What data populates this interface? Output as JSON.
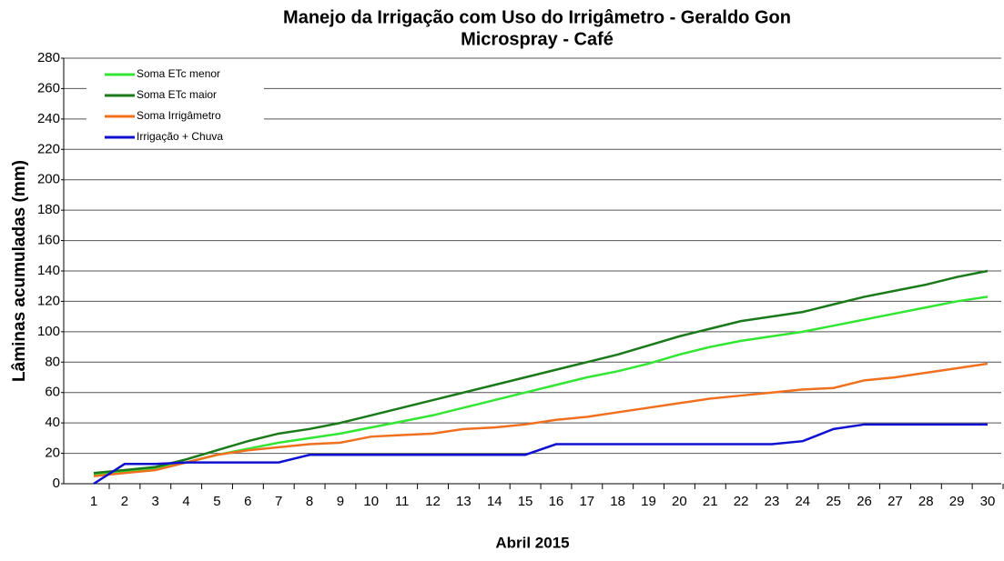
{
  "chart_data": {
    "type": "line",
    "title": "Manejo da Irrigação com Uso do Irrigâmetro - Geraldo Gon",
    "subtitle": "Microspray - Café",
    "x_label": "Abril 2015",
    "y_label": "Lâminas acumuladas (mm)",
    "x": [
      1,
      2,
      3,
      4,
      5,
      6,
      7,
      8,
      9,
      10,
      11,
      12,
      13,
      14,
      15,
      16,
      17,
      18,
      19,
      20,
      21,
      22,
      23,
      24,
      25,
      26,
      27,
      28,
      29,
      30
    ],
    "xticks": [
      1,
      2,
      3,
      4,
      5,
      6,
      7,
      8,
      9,
      10,
      11,
      12,
      13,
      14,
      15,
      16,
      17,
      18,
      19,
      20,
      21,
      22,
      23,
      24,
      25,
      26,
      27,
      28,
      29,
      30
    ],
    "ylim": [
      0,
      280
    ],
    "yticks": [
      0,
      20,
      40,
      60,
      80,
      100,
      120,
      140,
      160,
      180,
      200,
      220,
      240,
      260,
      280
    ],
    "grid": true,
    "legend": "upper left",
    "series": [
      {
        "name": "Soma ETc menor",
        "color": "#33e633",
        "values": [
          6,
          8,
          10,
          14,
          19,
          23,
          27,
          30,
          33,
          37,
          41,
          45,
          50,
          55,
          60,
          65,
          70,
          74,
          79,
          85,
          90,
          94,
          97,
          100,
          104,
          108,
          112,
          116,
          120,
          123
        ]
      },
      {
        "name": "Soma ETc maior",
        "color": "#1a7a1a",
        "values": [
          7,
          9,
          11,
          16,
          22,
          28,
          33,
          36,
          40,
          45,
          50,
          55,
          60,
          65,
          70,
          75,
          80,
          85,
          91,
          97,
          102,
          107,
          110,
          113,
          118,
          123,
          127,
          131,
          136,
          140
        ]
      },
      {
        "name": "Soma Irrigâmetro",
        "color": "#f07020",
        "values": [
          5,
          7,
          9,
          14,
          19,
          22,
          24,
          26,
          27,
          31,
          32,
          33,
          36,
          37,
          39,
          42,
          44,
          47,
          50,
          53,
          56,
          58,
          60,
          62,
          63,
          68,
          70,
          73,
          76,
          79
        ]
      },
      {
        "name": "Irrigação + Chuva",
        "color": "#1010d0",
        "values": [
          0,
          13,
          13,
          14,
          14,
          14,
          14,
          19,
          19,
          19,
          19,
          19,
          19,
          19,
          19,
          26,
          26,
          26,
          26,
          26,
          26,
          26,
          26,
          28,
          36,
          39,
          39,
          39,
          39,
          39
        ]
      }
    ]
  }
}
